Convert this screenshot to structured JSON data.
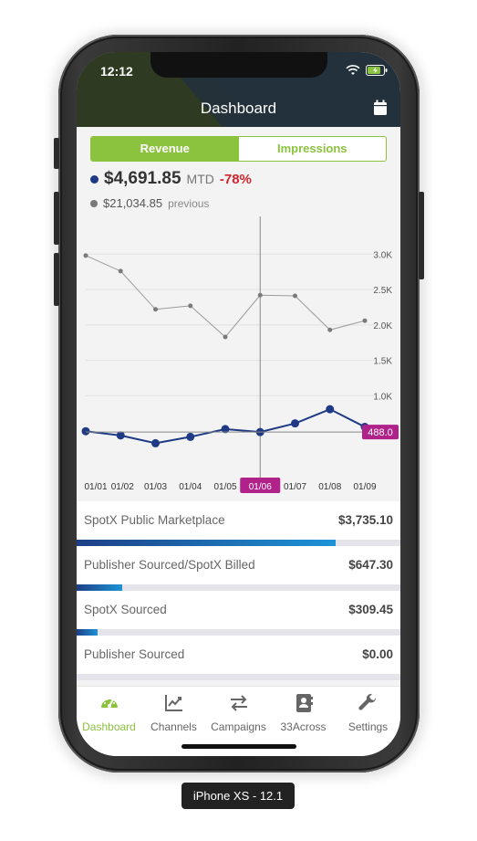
{
  "status": {
    "time": "12:12"
  },
  "header": {
    "title": "Dashboard"
  },
  "segment": {
    "revenue": "Revenue",
    "impressions": "Impressions"
  },
  "summary": {
    "current_amount": "$4,691.85",
    "current_label": "MTD",
    "change_pct": "-78%",
    "previous_amount": "$21,034.85",
    "previous_label": "previous"
  },
  "colors": {
    "accent_green": "#8bc23e",
    "current_series": "#1e3a84",
    "previous_series": "#7a7a7a",
    "highlight": "#b0218a",
    "negative": "#d0262e"
  },
  "chart_data": {
    "type": "line",
    "x": [
      "01/01",
      "01/02",
      "01/03",
      "01/04",
      "01/05",
      "01/06",
      "01/07",
      "01/08",
      "01/09"
    ],
    "series": [
      {
        "values": [
          2980,
          2760,
          2220,
          2270,
          1830,
          2420,
          2410,
          1930,
          2060
        ]
      },
      {
        "values": [
          500,
          440,
          330,
          420,
          530,
          488,
          610,
          810,
          560
        ]
      }
    ],
    "y_ticks": [
      "1.0K",
      "1.5K",
      "2.0K",
      "2.5K",
      "3.0K"
    ],
    "ylim": [
      0,
      3300
    ],
    "grid": true,
    "highlight": {
      "x_label": "01/06",
      "value_label": "488.0"
    }
  },
  "breakdown": [
    {
      "name": "SpotX Public Marketplace",
      "value": "$3,735.10",
      "share": 0.8
    },
    {
      "name": "Publisher Sourced/SpotX Billed",
      "value": "$647.30",
      "share": 0.14
    },
    {
      "name": "SpotX Sourced",
      "value": "$309.45",
      "share": 0.065
    },
    {
      "name": "Publisher Sourced",
      "value": "$0.00",
      "share": 0
    }
  ],
  "tabs": [
    {
      "label": "Dashboard",
      "icon": "gauge-icon"
    },
    {
      "label": "Channels",
      "icon": "trend-chart-icon"
    },
    {
      "label": "Campaigns",
      "icon": "swap-arrows-icon"
    },
    {
      "label": "33Across",
      "icon": "contact-book-icon"
    },
    {
      "label": "Settings",
      "icon": "wrench-icon"
    }
  ],
  "device_label": "iPhone XS - 12.1"
}
